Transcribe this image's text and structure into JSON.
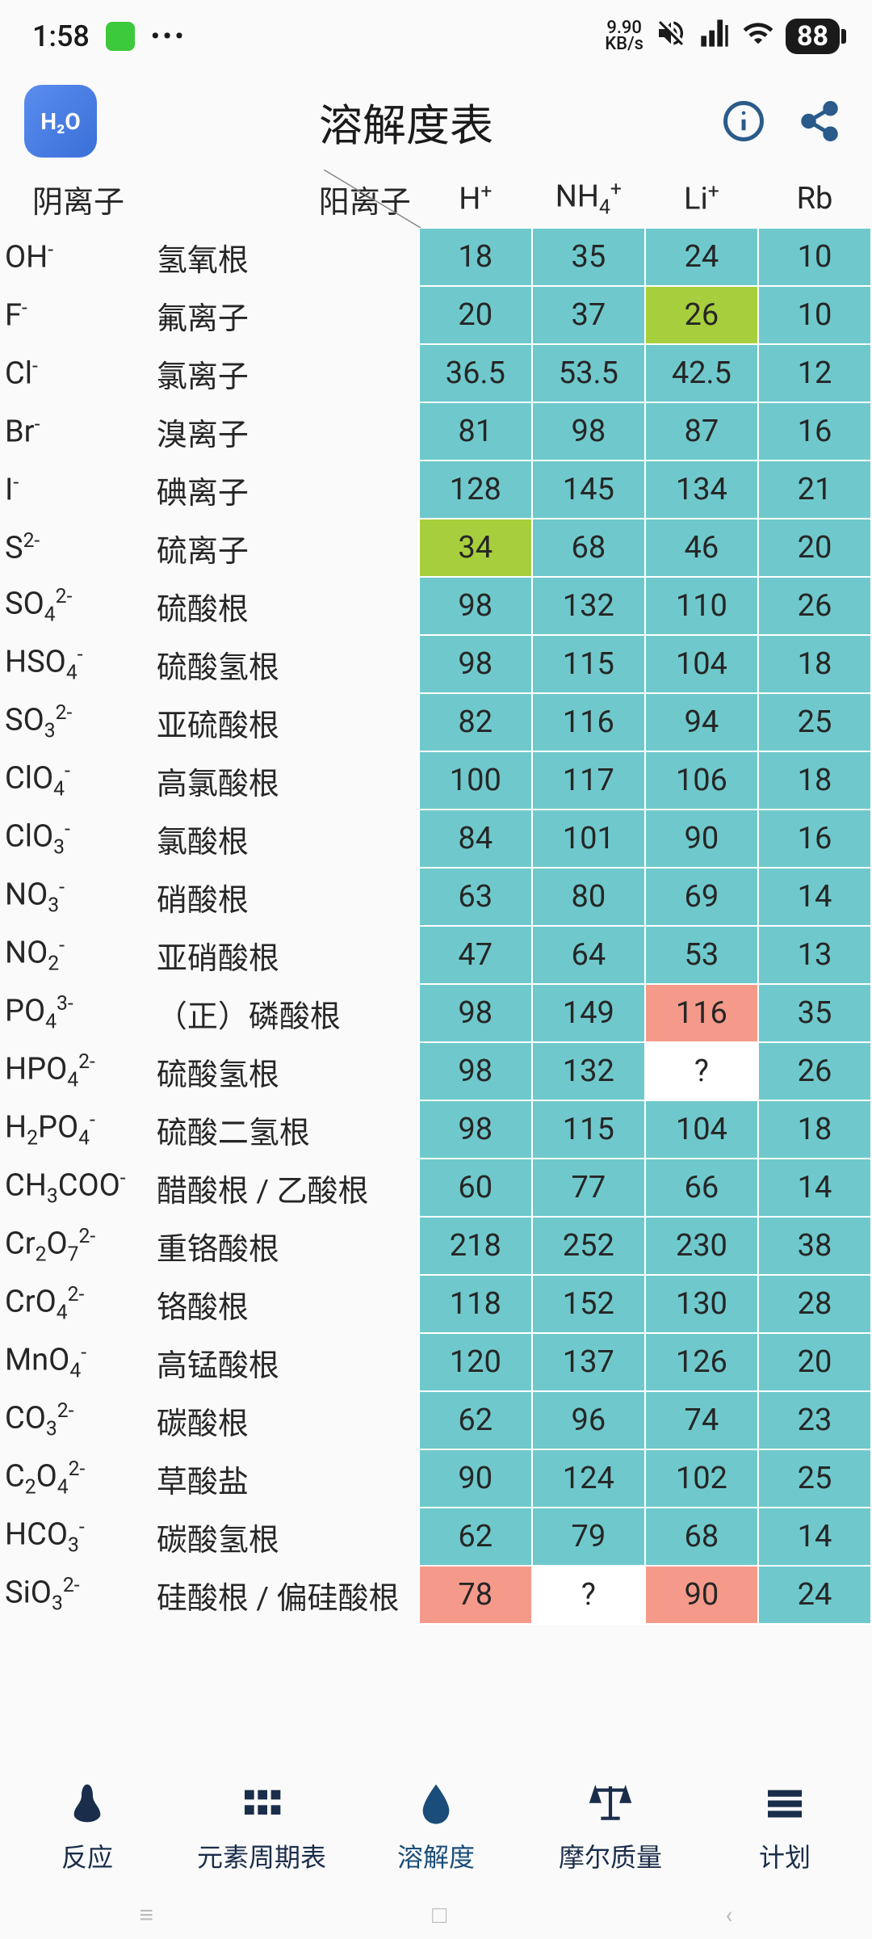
{
  "status": {
    "time": "1:58",
    "kbps_top": "9.90",
    "kbps_bot": "KB/s",
    "battery": "88"
  },
  "header": {
    "title": "溶解度表",
    "logo_text": "H₂O"
  },
  "colors": {
    "cyan": "#6fc9cc",
    "green": "#a7cf3d",
    "red": "#f59a8a",
    "white": "#ffffff",
    "cell_border": "#ffffff",
    "text": "#262626",
    "accent": "#1a4d7a"
  },
  "table": {
    "anion_header": "阴离子",
    "cation_header": "阳离子",
    "cations": [
      {
        "formula": "H",
        "sup": "+"
      },
      {
        "formula": "NH",
        "sub": "4",
        "sup": "+"
      },
      {
        "formula": "Li",
        "sup": "+"
      },
      {
        "formula": "Rb",
        "sup": ""
      }
    ],
    "rows": [
      {
        "formula": "OH",
        "sup": "-",
        "name": "氢氧根",
        "cells": [
          {
            "v": "18",
            "c": "cyan"
          },
          {
            "v": "35",
            "c": "cyan"
          },
          {
            "v": "24",
            "c": "cyan"
          },
          {
            "v": "10",
            "c": "cyan"
          }
        ]
      },
      {
        "formula": "F",
        "sup": "-",
        "name": "氟离子",
        "cells": [
          {
            "v": "20",
            "c": "cyan"
          },
          {
            "v": "37",
            "c": "cyan"
          },
          {
            "v": "26",
            "c": "green"
          },
          {
            "v": "10",
            "c": "cyan"
          }
        ]
      },
      {
        "formula": "Cl",
        "sup": "-",
        "name": "氯离子",
        "cells": [
          {
            "v": "36.5",
            "c": "cyan"
          },
          {
            "v": "53.5",
            "c": "cyan"
          },
          {
            "v": "42.5",
            "c": "cyan"
          },
          {
            "v": "12",
            "c": "cyan"
          }
        ]
      },
      {
        "formula": "Br",
        "sup": "-",
        "name": "溴离子",
        "cells": [
          {
            "v": "81",
            "c": "cyan"
          },
          {
            "v": "98",
            "c": "cyan"
          },
          {
            "v": "87",
            "c": "cyan"
          },
          {
            "v": "16",
            "c": "cyan"
          }
        ]
      },
      {
        "formula": "I",
        "sup": "-",
        "name": "碘离子",
        "cells": [
          {
            "v": "128",
            "c": "cyan"
          },
          {
            "v": "145",
            "c": "cyan"
          },
          {
            "v": "134",
            "c": "cyan"
          },
          {
            "v": "21",
            "c": "cyan"
          }
        ]
      },
      {
        "formula": "S",
        "sup": "2-",
        "name": "硫离子",
        "cells": [
          {
            "v": "34",
            "c": "green"
          },
          {
            "v": "68",
            "c": "cyan"
          },
          {
            "v": "46",
            "c": "cyan"
          },
          {
            "v": "20",
            "c": "cyan"
          }
        ]
      },
      {
        "formula": "SO",
        "sub": "4",
        "sup": "2-",
        "name": "硫酸根",
        "cells": [
          {
            "v": "98",
            "c": "cyan"
          },
          {
            "v": "132",
            "c": "cyan"
          },
          {
            "v": "110",
            "c": "cyan"
          },
          {
            "v": "26",
            "c": "cyan"
          }
        ]
      },
      {
        "formula": "HSO",
        "sub": "4",
        "sup": "-",
        "name": "硫酸氢根",
        "cells": [
          {
            "v": "98",
            "c": "cyan"
          },
          {
            "v": "115",
            "c": "cyan"
          },
          {
            "v": "104",
            "c": "cyan"
          },
          {
            "v": "18",
            "c": "cyan"
          }
        ]
      },
      {
        "formula": "SO",
        "sub": "3",
        "sup": "2-",
        "name": "亚硫酸根",
        "cells": [
          {
            "v": "82",
            "c": "cyan"
          },
          {
            "v": "116",
            "c": "cyan"
          },
          {
            "v": "94",
            "c": "cyan"
          },
          {
            "v": "25",
            "c": "cyan"
          }
        ]
      },
      {
        "formula": "ClO",
        "sub": "4",
        "sup": "-",
        "name": "高氯酸根",
        "cells": [
          {
            "v": "100",
            "c": "cyan"
          },
          {
            "v": "117",
            "c": "cyan"
          },
          {
            "v": "106",
            "c": "cyan"
          },
          {
            "v": "18",
            "c": "cyan"
          }
        ]
      },
      {
        "formula": "ClO",
        "sub": "3",
        "sup": "-",
        "name": "氯酸根",
        "cells": [
          {
            "v": "84",
            "c": "cyan"
          },
          {
            "v": "101",
            "c": "cyan"
          },
          {
            "v": "90",
            "c": "cyan"
          },
          {
            "v": "16",
            "c": "cyan"
          }
        ]
      },
      {
        "formula": "NO",
        "sub": "3",
        "sup": "-",
        "name": "硝酸根",
        "cells": [
          {
            "v": "63",
            "c": "cyan"
          },
          {
            "v": "80",
            "c": "cyan"
          },
          {
            "v": "69",
            "c": "cyan"
          },
          {
            "v": "14",
            "c": "cyan"
          }
        ]
      },
      {
        "formula": "NO",
        "sub": "2",
        "sup": "-",
        "name": "亚硝酸根",
        "cells": [
          {
            "v": "47",
            "c": "cyan"
          },
          {
            "v": "64",
            "c": "cyan"
          },
          {
            "v": "53",
            "c": "cyan"
          },
          {
            "v": "13",
            "c": "cyan"
          }
        ]
      },
      {
        "formula": "PO",
        "sub": "4",
        "sup": "3-",
        "name": "（正）磷酸根",
        "cells": [
          {
            "v": "98",
            "c": "cyan"
          },
          {
            "v": "149",
            "c": "cyan"
          },
          {
            "v": "116",
            "c": "red"
          },
          {
            "v": "35",
            "c": "cyan"
          }
        ]
      },
      {
        "formula": "HPO",
        "sub": "4",
        "sup": "2-",
        "name": "硫酸氢根",
        "cells": [
          {
            "v": "98",
            "c": "cyan"
          },
          {
            "v": "132",
            "c": "cyan"
          },
          {
            "v": "?",
            "c": "white"
          },
          {
            "v": "26",
            "c": "cyan"
          }
        ]
      },
      {
        "formula": "H",
        "sub2": "2",
        "mid": "PO",
        "sub": "4",
        "sup": "-",
        "name": "硫酸二氢根",
        "cells": [
          {
            "v": "98",
            "c": "cyan"
          },
          {
            "v": "115",
            "c": "cyan"
          },
          {
            "v": "104",
            "c": "cyan"
          },
          {
            "v": "18",
            "c": "cyan"
          }
        ]
      },
      {
        "formula": "CH",
        "sub2": "3",
        "mid": "COO",
        "sup": "-",
        "name": "醋酸根 / 乙酸根",
        "cells": [
          {
            "v": "60",
            "c": "cyan"
          },
          {
            "v": "77",
            "c": "cyan"
          },
          {
            "v": "66",
            "c": "cyan"
          },
          {
            "v": "14",
            "c": "cyan"
          }
        ]
      },
      {
        "formula": "Cr",
        "sub2": "2",
        "mid": "O",
        "sub": "7",
        "sup": "2-",
        "name": "重铬酸根",
        "cells": [
          {
            "v": "218",
            "c": "cyan"
          },
          {
            "v": "252",
            "c": "cyan"
          },
          {
            "v": "230",
            "c": "cyan"
          },
          {
            "v": "38",
            "c": "cyan"
          }
        ]
      },
      {
        "formula": "CrO",
        "sub": "4",
        "sup": "2-",
        "name": "铬酸根",
        "cells": [
          {
            "v": "118",
            "c": "cyan"
          },
          {
            "v": "152",
            "c": "cyan"
          },
          {
            "v": "130",
            "c": "cyan"
          },
          {
            "v": "28",
            "c": "cyan"
          }
        ]
      },
      {
        "formula": "MnO",
        "sub": "4",
        "sup": "-",
        "name": "高锰酸根",
        "cells": [
          {
            "v": "120",
            "c": "cyan"
          },
          {
            "v": "137",
            "c": "cyan"
          },
          {
            "v": "126",
            "c": "cyan"
          },
          {
            "v": "20",
            "c": "cyan"
          }
        ]
      },
      {
        "formula": "CO",
        "sub": "3",
        "sup": "2-",
        "name": "碳酸根",
        "cells": [
          {
            "v": "62",
            "c": "cyan"
          },
          {
            "v": "96",
            "c": "cyan"
          },
          {
            "v": "74",
            "c": "cyan"
          },
          {
            "v": "23",
            "c": "cyan"
          }
        ]
      },
      {
        "formula": "C",
        "sub2": "2",
        "mid": "O",
        "sub": "4",
        "sup": "2-",
        "name": "草酸盐",
        "cells": [
          {
            "v": "90",
            "c": "cyan"
          },
          {
            "v": "124",
            "c": "cyan"
          },
          {
            "v": "102",
            "c": "cyan"
          },
          {
            "v": "25",
            "c": "cyan"
          }
        ]
      },
      {
        "formula": "HCO",
        "sub": "3",
        "sup": "-",
        "name": "碳酸氢根",
        "cells": [
          {
            "v": "62",
            "c": "cyan"
          },
          {
            "v": "79",
            "c": "cyan"
          },
          {
            "v": "68",
            "c": "cyan"
          },
          {
            "v": "14",
            "c": "cyan"
          }
        ]
      },
      {
        "formula": "SiO",
        "sub": "3",
        "sup": "2-",
        "name": "硅酸根 / 偏硅酸根",
        "cells": [
          {
            "v": "78",
            "c": "red"
          },
          {
            "v": "?",
            "c": "white"
          },
          {
            "v": "90",
            "c": "red"
          },
          {
            "v": "24",
            "c": "cyan"
          }
        ]
      }
    ]
  },
  "nav": {
    "items": [
      {
        "label": "反应",
        "active": false
      },
      {
        "label": "元素周期表",
        "active": false
      },
      {
        "label": "溶解度",
        "active": true
      },
      {
        "label": "摩尔质量",
        "active": false
      },
      {
        "label": "计划",
        "active": false
      }
    ]
  }
}
